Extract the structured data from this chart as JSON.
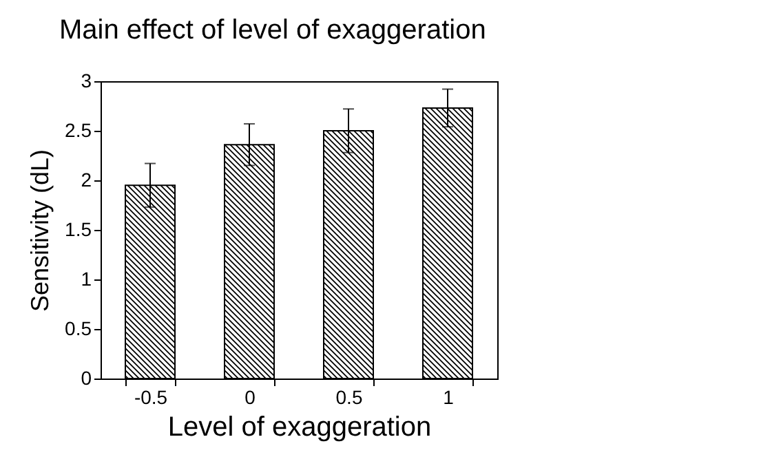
{
  "chart_data": {
    "type": "bar",
    "title": "Main effect of level of exaggeration",
    "xlabel": "Level of exaggeration",
    "ylabel": "Sensitivity (dL)",
    "categories": [
      "-0.5",
      "0",
      "0.5",
      "1"
    ],
    "values": [
      1.95,
      2.36,
      2.5,
      2.73
    ],
    "errors": [
      0.22,
      0.21,
      0.22,
      0.19
    ],
    "color": "#000000",
    "ylim": [
      0,
      3
    ],
    "yticks": [
      0,
      0.5,
      1,
      1.5,
      2,
      2.5,
      3
    ],
    "grid": false
  }
}
